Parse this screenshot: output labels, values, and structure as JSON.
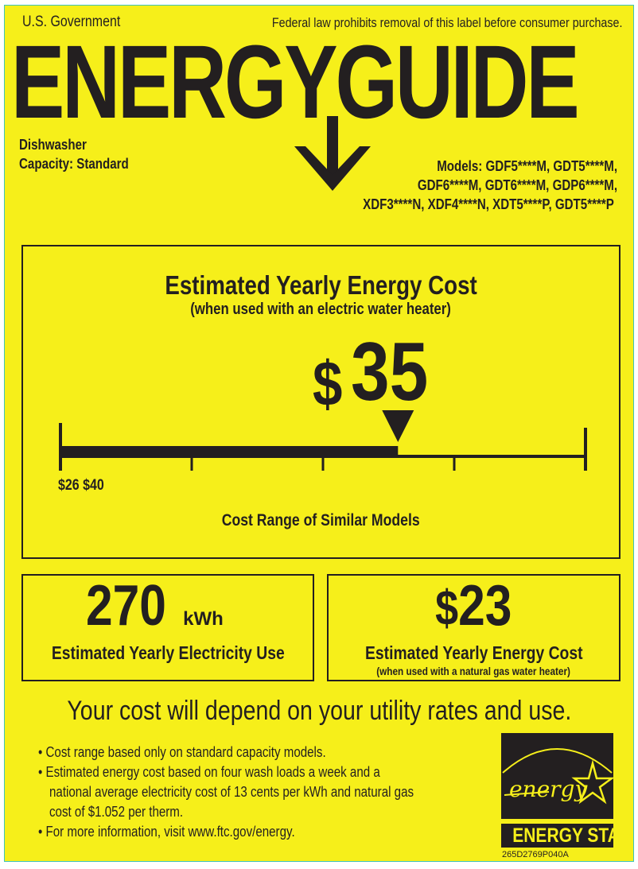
{
  "header": {
    "gov": "U.S. Government",
    "notice": "Federal law prohibits removal of this label before consumer purchase.",
    "title": "ENERGYGUIDE"
  },
  "product": {
    "type": "Dishwasher",
    "capacity": "Capacity: Standard",
    "models": [
      "Models: GDF5****M, GDT5****M,",
      "GDF6****M, GDT6****M, GDP6****M,",
      "XDF3****N, XDF4****N, XDT5****P, GDT5****P"
    ]
  },
  "main_cost": {
    "title": "Estimated Yearly Energy Cost",
    "subtitle": "(when used with an electric water heater)",
    "dollar": "$",
    "value": "35",
    "range_labels": "$26 $40",
    "range_min": 26,
    "range_max": 40,
    "current": 35,
    "range_caption": "Cost Range of Similar Models"
  },
  "electricity": {
    "value": "270",
    "unit": "kWh",
    "label": "Estimated Yearly Electricity Use"
  },
  "gas_cost": {
    "dollar": "$",
    "value": "23",
    "label": "Estimated Yearly Energy Cost",
    "sublabel": "(when used with a natural gas water heater)"
  },
  "footer": {
    "headline": "Your cost will depend on your utility rates and use.",
    "bullets": [
      "Cost range based only on standard capacity models.",
      "Estimated energy cost based on four wash loads a week and a",
      "national average electricity cost of 13 cents per kWh and natural gas",
      "cost of $1.052 per therm.",
      "For more information, visit www.ftc.gov/energy."
    ],
    "energy_star_script": "energy",
    "energy_star_label": "ENERGY STAR",
    "code": "265D2769P040A"
  },
  "colors": {
    "background": "#f6ef1a",
    "ink": "#231f20",
    "border": "#3fc3b8"
  }
}
